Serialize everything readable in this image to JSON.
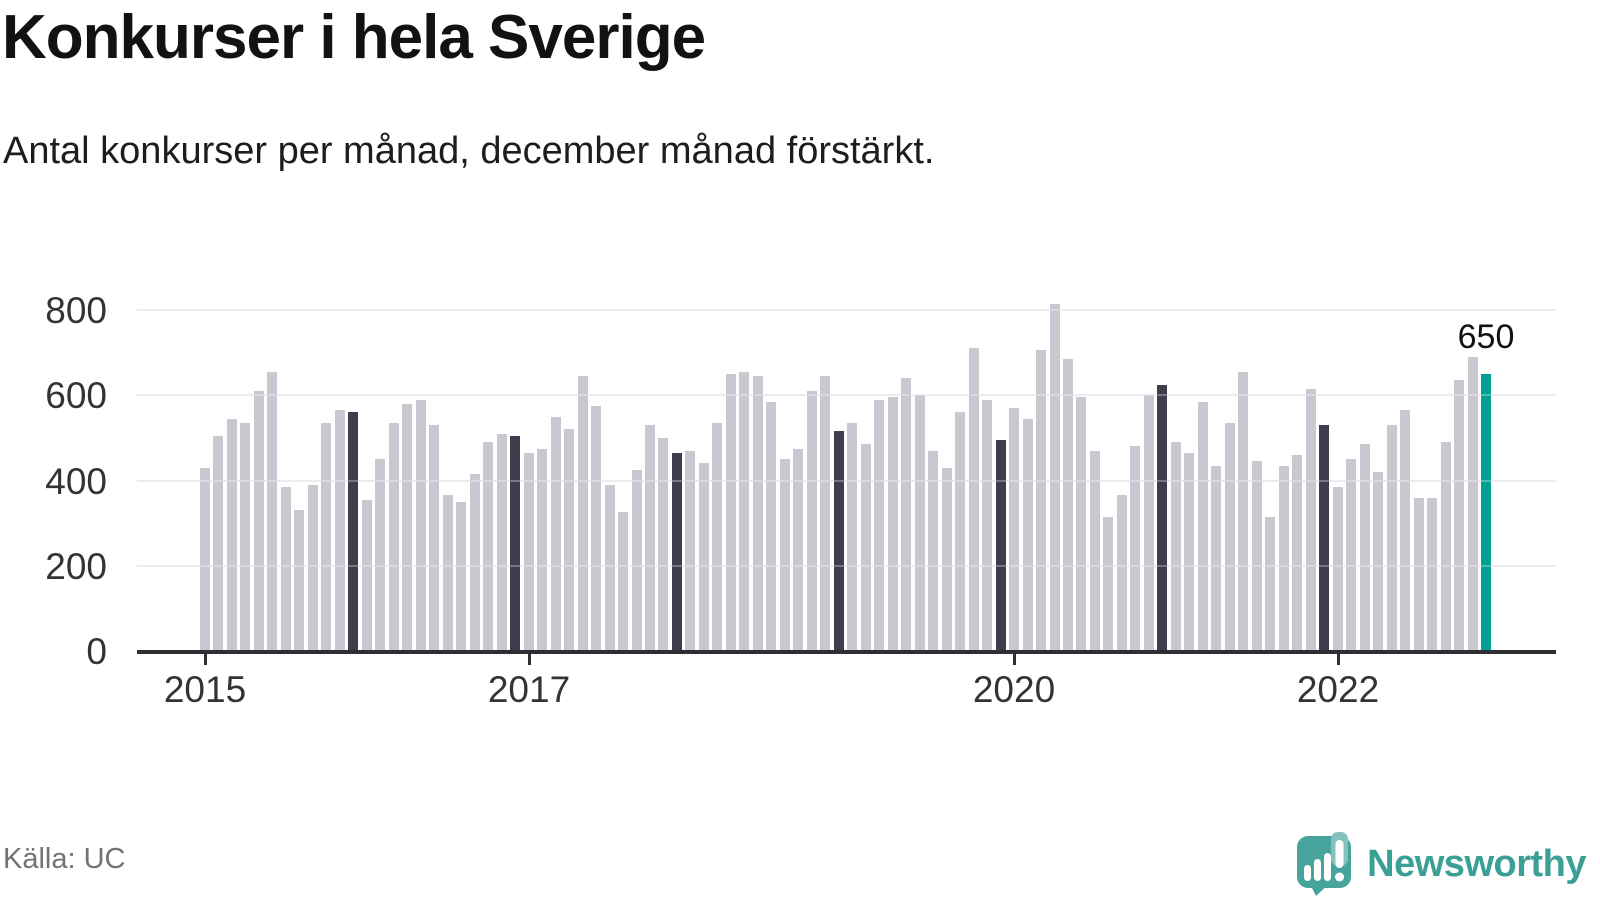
{
  "header": {
    "title": "Konkurser i hela Sverige",
    "subtitle": "Antal konkurser per månad, december månad förstärkt."
  },
  "footer": {
    "source": "Källa: UC",
    "brand_name": "Newsworthy"
  },
  "colors": {
    "bar": "#c9c8d1",
    "december_bar": "#3d3d4c",
    "highlight_bar": "#00a096",
    "gridline": "#e4e4e7",
    "axis": "#2f2f33",
    "brand_teal": "#3aa096",
    "logo_main": "#47a49d",
    "logo_light": "#84c3bd"
  },
  "icons": {
    "logo": "newsworthy-speech-bubble-chart-icon"
  },
  "chart_data": {
    "type": "bar",
    "title": "Konkurser i hela Sverige",
    "subtitle": "Antal konkurser per månad, december månad förstärkt.",
    "ylabel": "",
    "xlabel": "",
    "ylim": [
      0,
      800
    ],
    "yticks": [
      0,
      200,
      400,
      600,
      800
    ],
    "grid": true,
    "legend": "none",
    "x_start": "2015-01",
    "x_end": "2022-12",
    "year_tick_labels": [
      2015,
      2017,
      2020,
      2022
    ],
    "highlight_rule": "december bars dark, latest month teal",
    "last_point": {
      "month": "2022-12",
      "value": 650,
      "label": "650"
    },
    "years": [
      {
        "year": 2015,
        "monthly": [
          430,
          505,
          545,
          535,
          610,
          655,
          385,
          330,
          390,
          535,
          565,
          560
        ]
      },
      {
        "year": 2016,
        "monthly": [
          355,
          450,
          535,
          580,
          590,
          530,
          365,
          350,
          415,
          490,
          510,
          505
        ]
      },
      {
        "year": 2017,
        "monthly": [
          465,
          475,
          550,
          520,
          645,
          575,
          390,
          325,
          425,
          530,
          500,
          465
        ]
      },
      {
        "year": 2018,
        "monthly": [
          470,
          440,
          535,
          650,
          655,
          645,
          585,
          450,
          475,
          610,
          645,
          515
        ]
      },
      {
        "year": 2019,
        "monthly": [
          535,
          485,
          590,
          595,
          640,
          600,
          470,
          430,
          560,
          710,
          590,
          495
        ]
      },
      {
        "year": 2020,
        "monthly": [
          570,
          545,
          705,
          815,
          685,
          595,
          470,
          315,
          365,
          480,
          600,
          625
        ]
      },
      {
        "year": 2021,
        "monthly": [
          490,
          465,
          585,
          435,
          535,
          655,
          445,
          315,
          435,
          460,
          615,
          530
        ]
      },
      {
        "year": 2022,
        "monthly": [
          385,
          450,
          485,
          420,
          530,
          565,
          360,
          360,
          490,
          635,
          690,
          650
        ]
      }
    ]
  }
}
